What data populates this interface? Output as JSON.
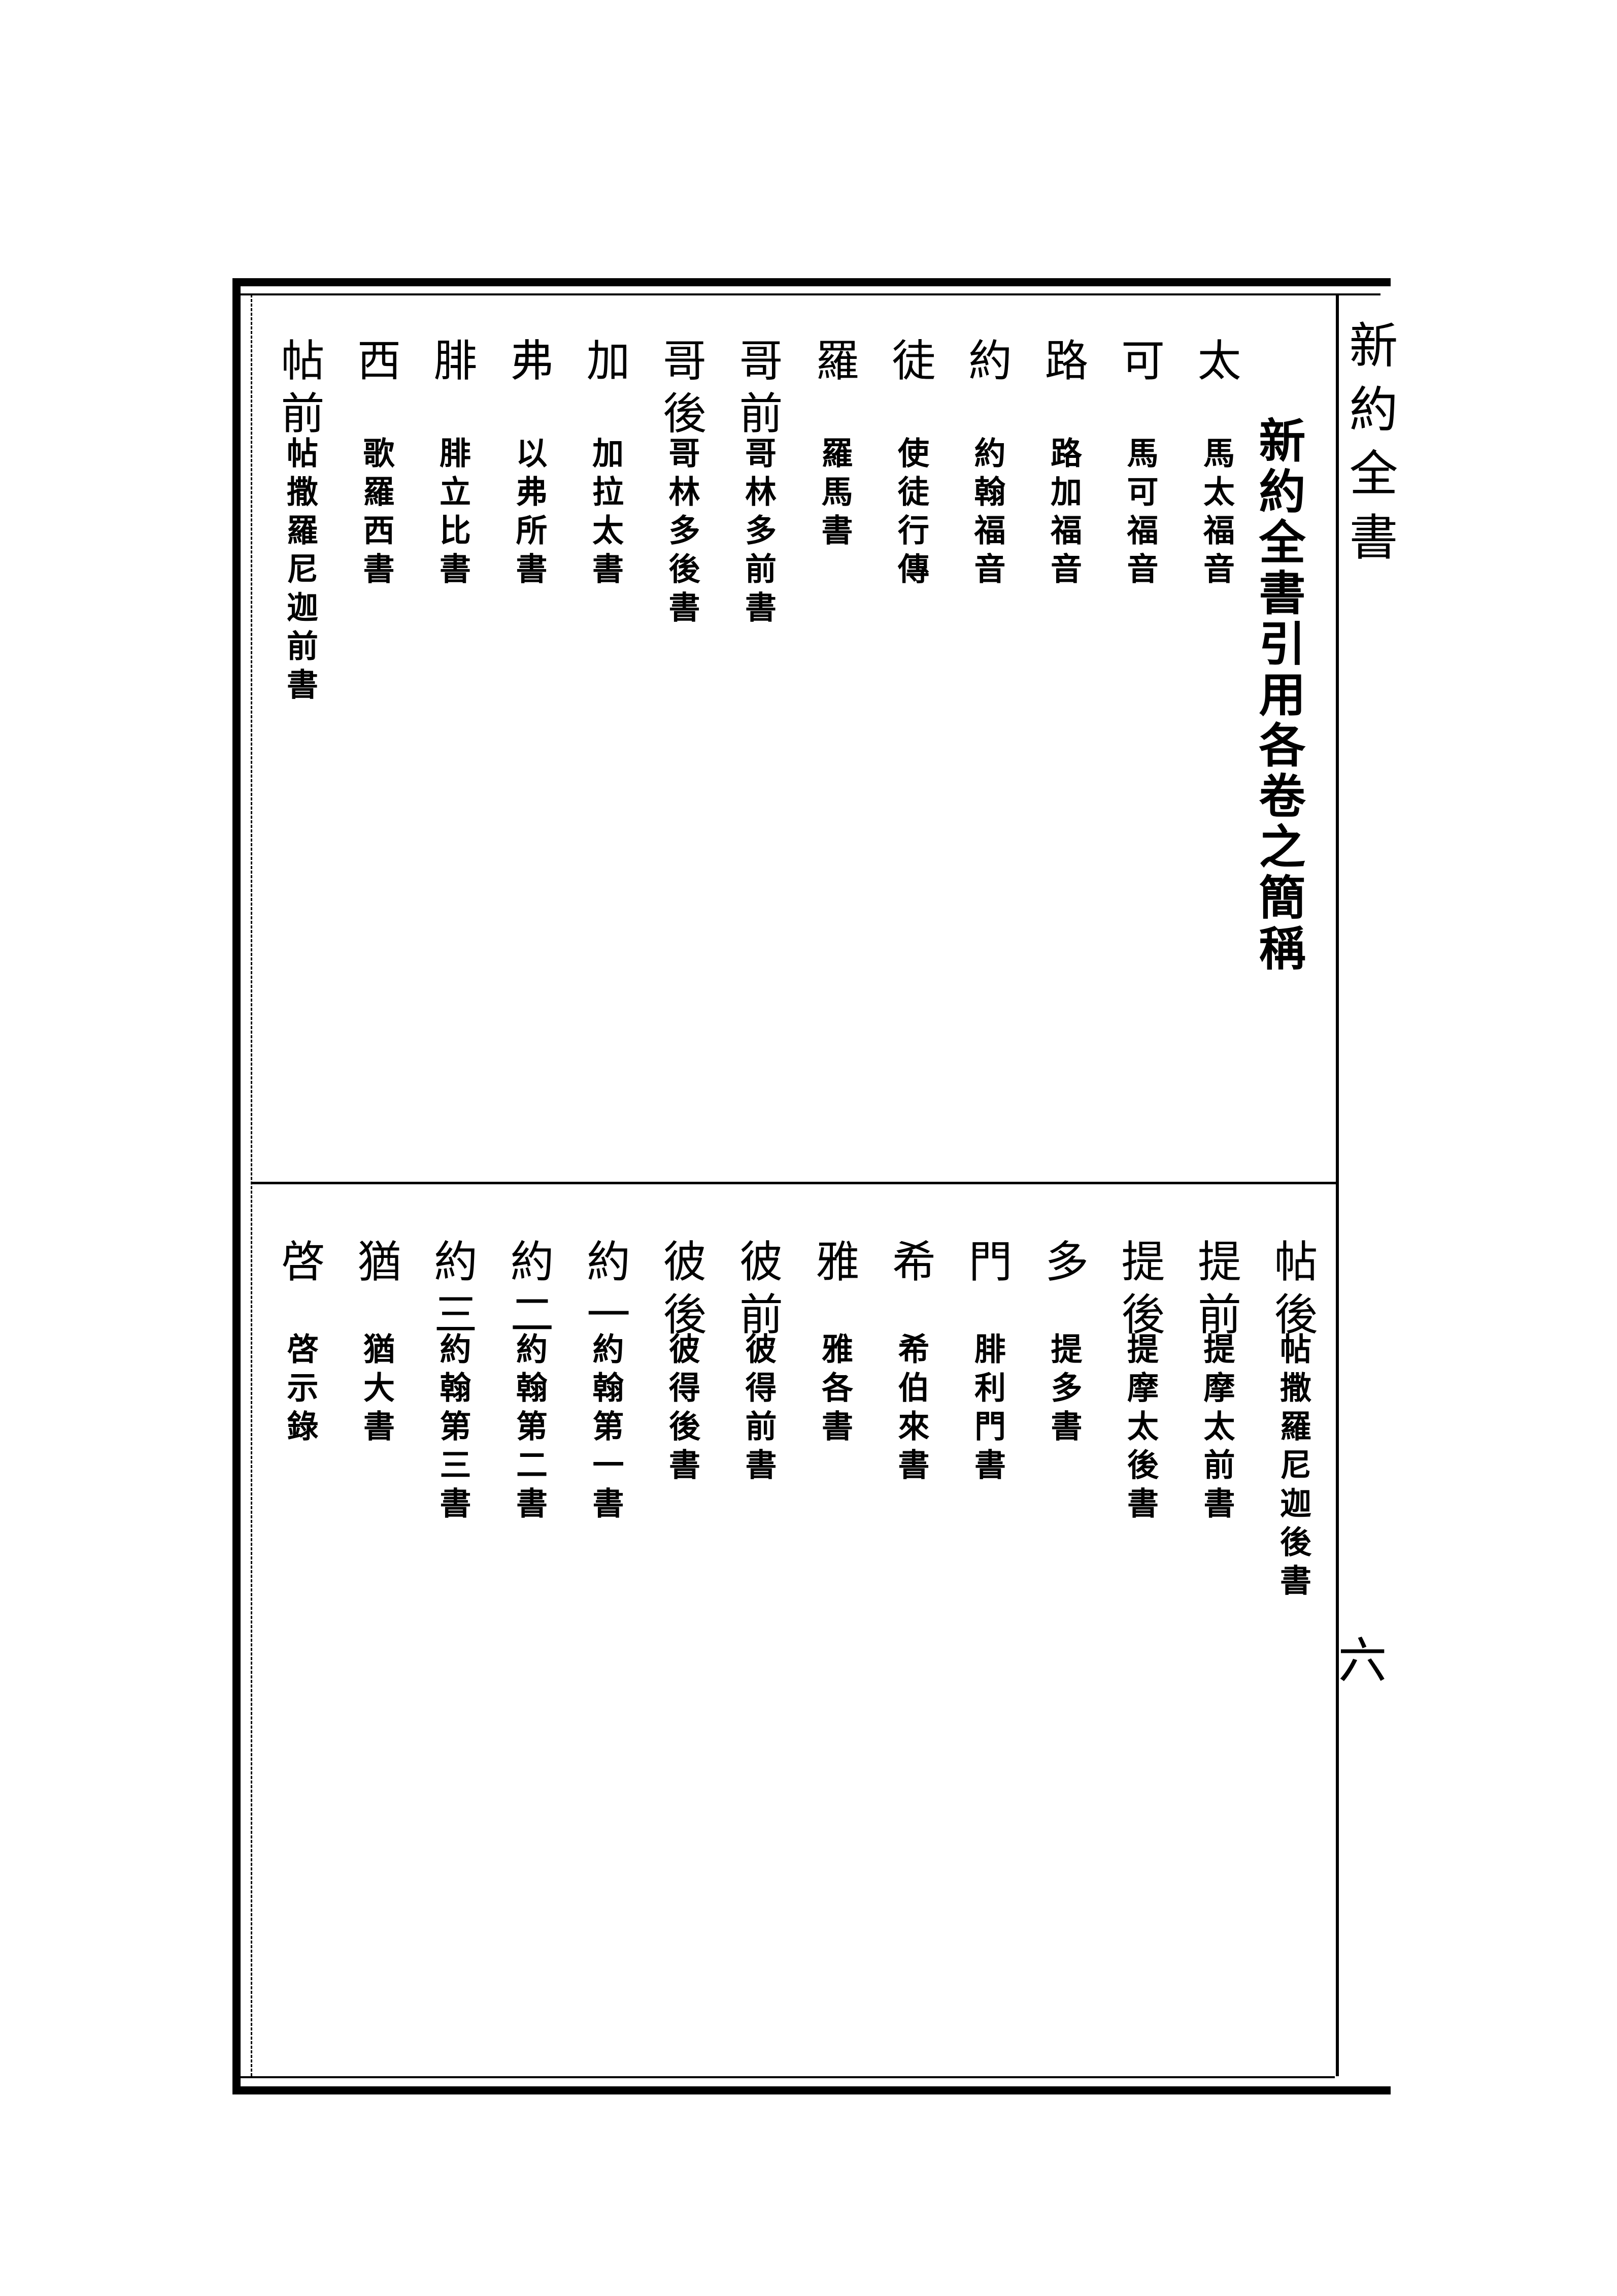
{
  "running_head": "新約全書",
  "page_number": "六",
  "title": "新約全書引用各卷之簡稱",
  "upper_entries": [
    {
      "abbr": "太",
      "full": "馬太福音"
    },
    {
      "abbr": "可",
      "full": "馬可福音"
    },
    {
      "abbr": "路",
      "full": "路加福音"
    },
    {
      "abbr": "約",
      "full": "約翰福音"
    },
    {
      "abbr": "徒",
      "full": "使徒行傳"
    },
    {
      "abbr": "羅",
      "full": "羅馬書"
    },
    {
      "abbr": "哥前",
      "full": "哥林多前書"
    },
    {
      "abbr": "哥後",
      "full": "哥林多後書"
    },
    {
      "abbr": "加",
      "full": "加拉太書"
    },
    {
      "abbr": "弗",
      "full": "以弗所書"
    },
    {
      "abbr": "腓",
      "full": "腓立比書"
    },
    {
      "abbr": "西",
      "full": "歌羅西書"
    },
    {
      "abbr": "帖前",
      "full": "帖撒羅尼迦前書"
    }
  ],
  "lower_entries": [
    {
      "abbr": "帖後",
      "full": "帖撒羅尼迦後書"
    },
    {
      "abbr": "提前",
      "full": "提摩太前書"
    },
    {
      "abbr": "提後",
      "full": "提摩太後書"
    },
    {
      "abbr": "多",
      "full": "提多書"
    },
    {
      "abbr": "門",
      "full": "腓利門書"
    },
    {
      "abbr": "希",
      "full": "希伯來書"
    },
    {
      "abbr": "雅",
      "full": "雅各書"
    },
    {
      "abbr": "彼前",
      "full": "彼得前書"
    },
    {
      "abbr": "彼後",
      "full": "彼得後書"
    },
    {
      "abbr": "約一",
      "full": "約翰第一書"
    },
    {
      "abbr": "約二",
      "full": "約翰第二書"
    },
    {
      "abbr": "約三",
      "full": "約翰第三書"
    },
    {
      "abbr": "猶",
      "full": "猶大書"
    },
    {
      "abbr": "啓",
      "full": "啓示錄"
    }
  ]
}
